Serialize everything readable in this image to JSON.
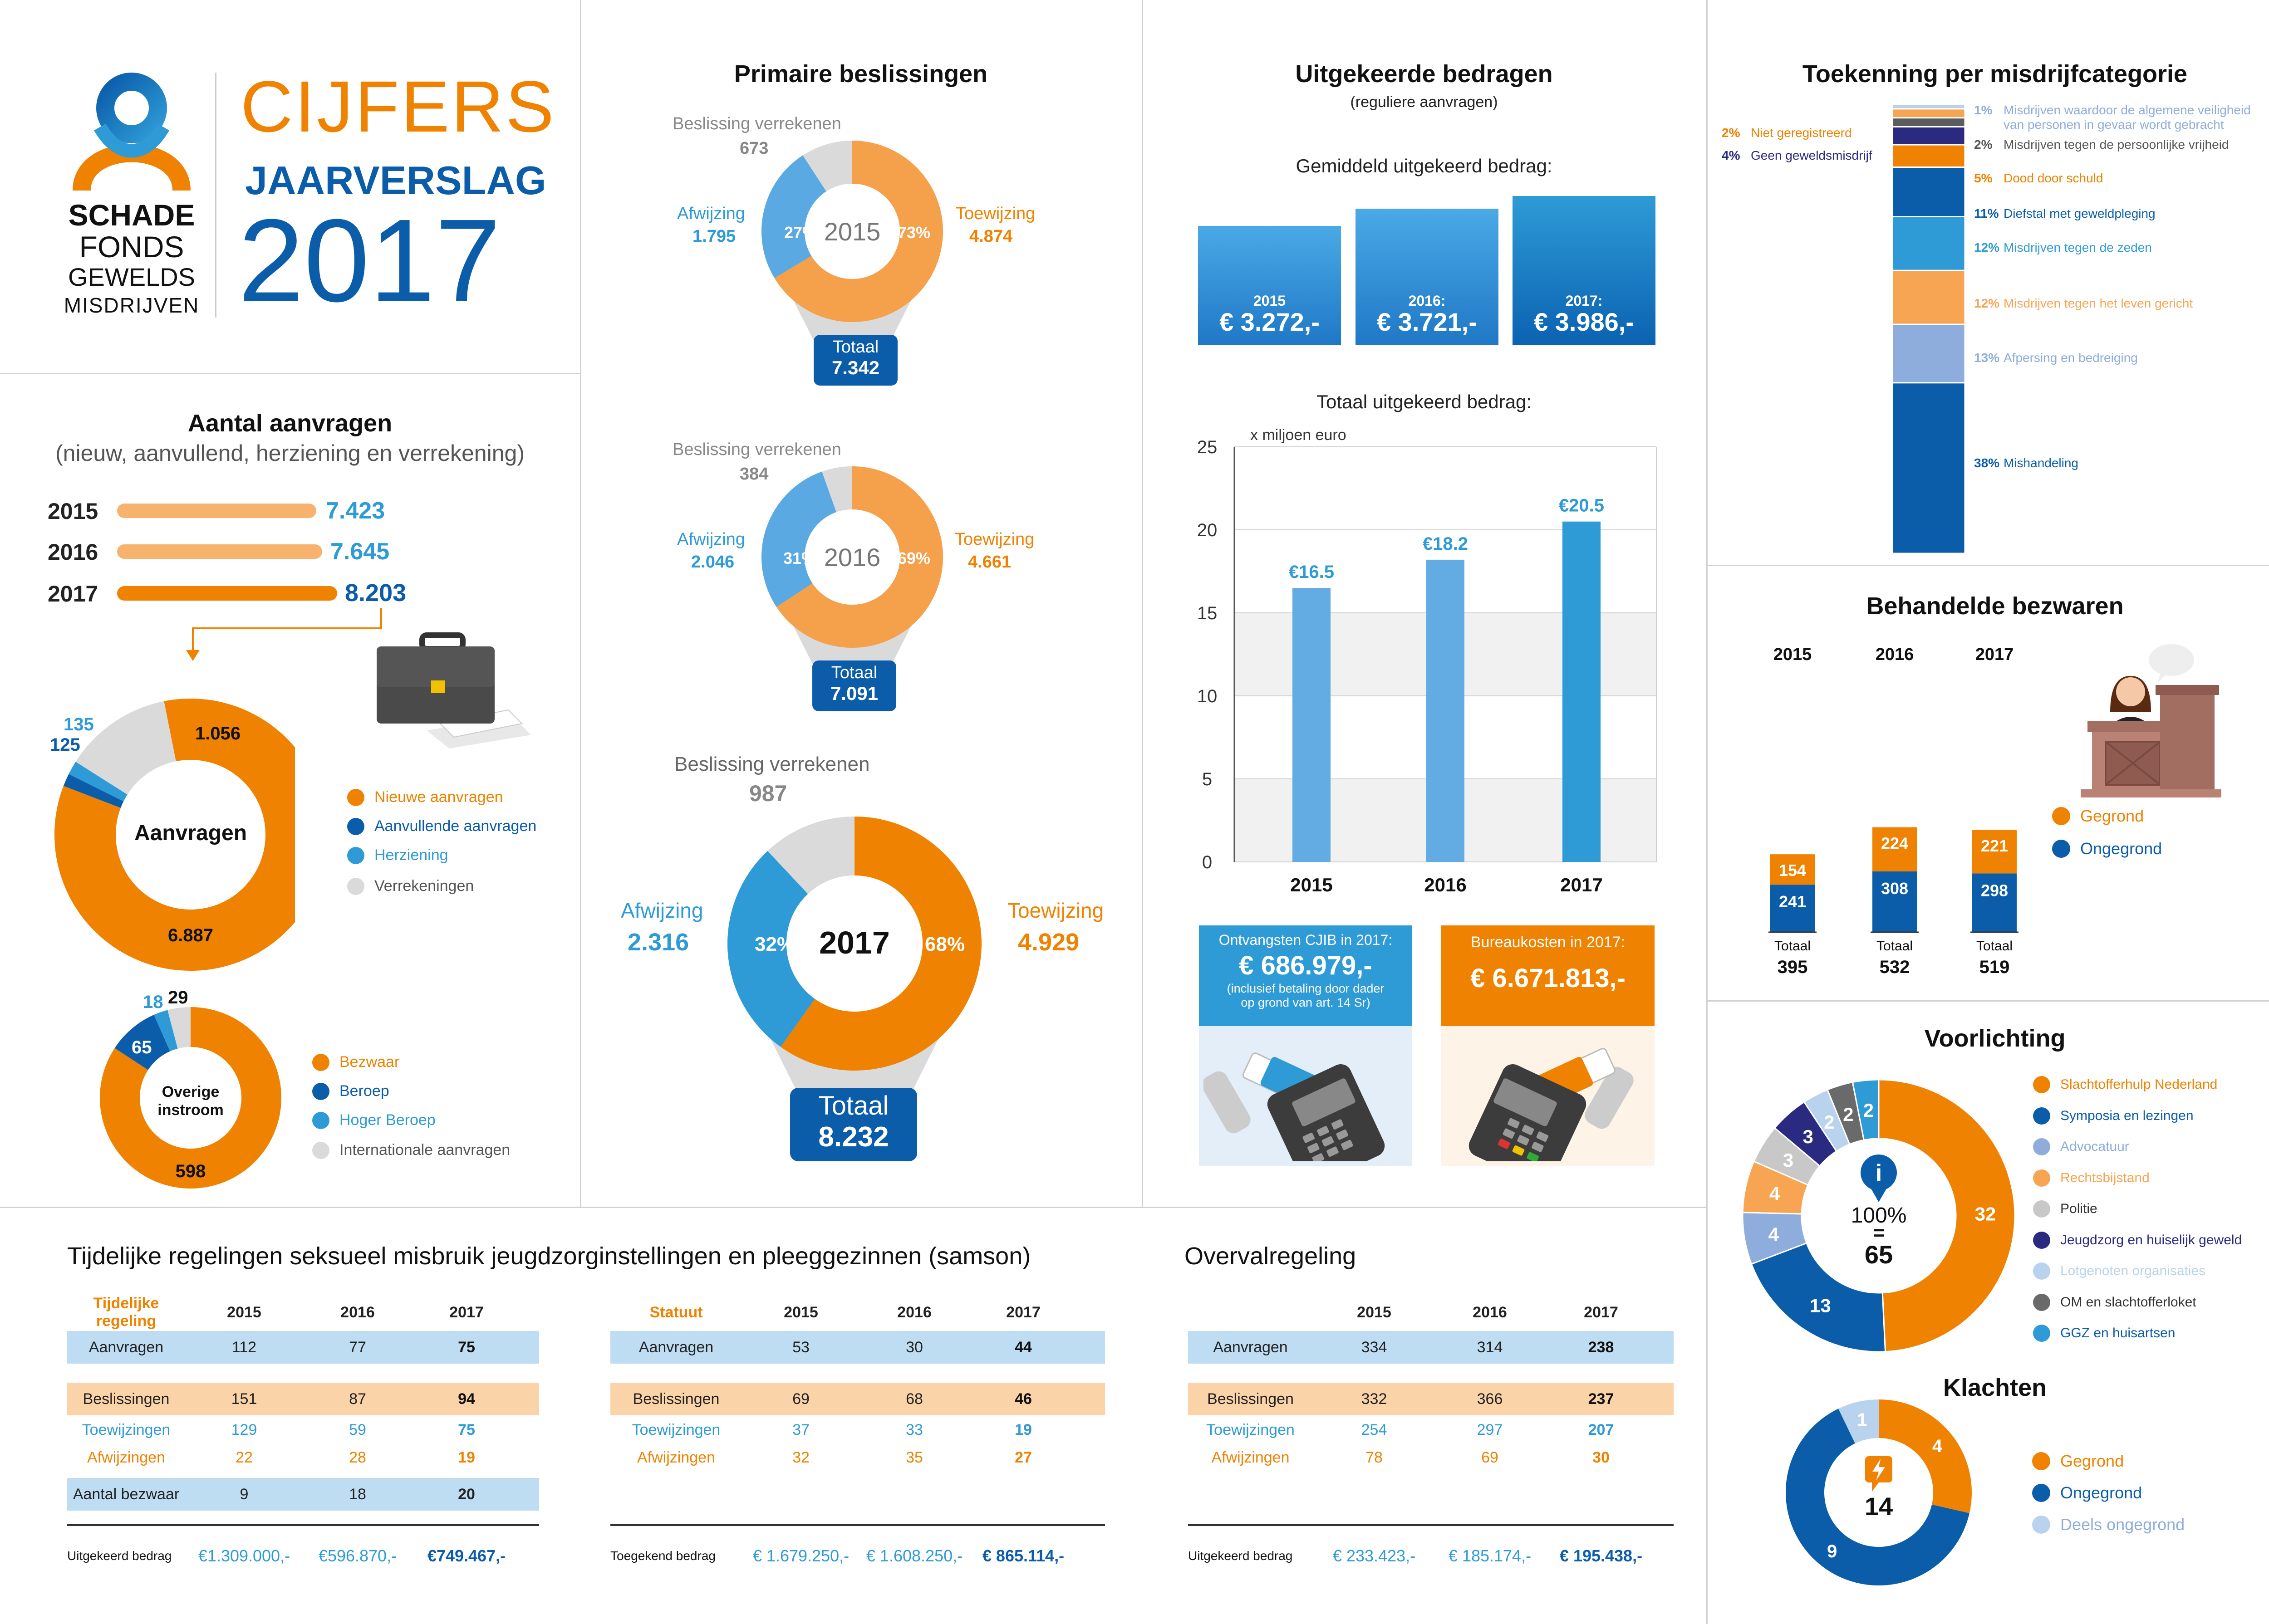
{
  "colors": {
    "orange": "#EF8200",
    "light_orange": "#F7A552",
    "blue": "#0B5DAA",
    "light_blue": "#2E9BD6",
    "gray": "#DADADA",
    "navy": "#2A2A80"
  },
  "logo": {
    "line1": "SCHADE",
    "line2": "FONDS",
    "line3": "GEWELDS",
    "line4": "MISDRIJVEN",
    "title1": "CIJFERS",
    "title2": "JAARVERSLAG",
    "year": "2017"
  },
  "aanvragen": {
    "title": "Aantal aanvragen",
    "subtitle": "(nieuw, aanvullend, herziening en verrekening)",
    "rows": [
      {
        "year": "2015",
        "value": "7.423",
        "bar": 7423
      },
      {
        "year": "2016",
        "value": "7.645",
        "bar": 7645
      },
      {
        "year": "2017",
        "value": "8.203",
        "bar": 8203
      }
    ],
    "donut_label": "Aanvragen",
    "legend": [
      "Nieuwe aanvragen",
      "Aanvullende aanvragen",
      "Herziening",
      "Verrekeningen"
    ],
    "other_label_line1": "Overige",
    "other_label_line2": "instroom",
    "other_legend": [
      "Bezwaar",
      "Beroep",
      "Hoger Beroep",
      "Internationale aanvragen"
    ]
  },
  "primaire": {
    "title": "Primaire beslissingen",
    "verrekenen_label": "Beslissing verrekenen",
    "afwijzing_label": "Afwijzing",
    "toewijzing_label": "Toewijzing",
    "totaal_label": "Totaal",
    "years": [
      {
        "year": "2015",
        "verrekenen": "673",
        "afwijzing": "1.795",
        "toewijzing": "4.874",
        "afw_pct": "27%",
        "toe_pct": "73%",
        "totaal": "7.342"
      },
      {
        "year": "2016",
        "verrekenen": "384",
        "afwijzing": "2.046",
        "toewijzing": "4.661",
        "afw_pct": "31%",
        "toe_pct": "69%",
        "totaal": "7.091"
      },
      {
        "year": "2017",
        "verrekenen": "987",
        "afwijzing": "2.316",
        "toewijzing": "4.929",
        "afw_pct": "32%",
        "toe_pct": "68%",
        "totaal": "8.232"
      }
    ]
  },
  "uitgekeerd": {
    "title": "Uitgekeerde bedragen",
    "subtitle": "(reguliere aanvragen)",
    "avg_title": "Gemiddeld uitgekeerd bedrag:",
    "avg": [
      {
        "year": "2015",
        "value": "€ 3.272,-"
      },
      {
        "year": "2016:",
        "value": "€ 3.721,-"
      },
      {
        "year": "2017:",
        "value": "€ 3.986,-"
      }
    ],
    "total_title": "Totaal uitgekeerd bedrag:",
    "cjib_title": "Ontvangsten CJIB in 2017:",
    "cjib_value": "€ 686.979,-",
    "cjib_note1": "(inclusief betaling door dader",
    "cjib_note2": "op grond van art. 14 Sr)",
    "bureau_title": "Bureaukosten in 2017:",
    "bureau_value": "€ 6.671.813,-"
  },
  "chart_data": [
    {
      "type": "bar",
      "title": "Totaal uitgekeerd bedrag:",
      "ylabel": "x miljoen euro",
      "categories": [
        "2015",
        "2016",
        "2017"
      ],
      "values": [
        16.5,
        18.2,
        20.5
      ],
      "data_labels": [
        "€16.5",
        "€18.2",
        "€20.5"
      ],
      "ylim": [
        0,
        25
      ],
      "yticks": [
        0,
        5,
        10,
        15,
        20,
        25
      ],
      "grid": true
    },
    {
      "type": "bar",
      "title": "Behandelde bezwaren",
      "categories": [
        "2015",
        "2016",
        "2017"
      ],
      "series": [
        {
          "name": "Gegrond",
          "values": [
            154,
            224,
            221
          ]
        },
        {
          "name": "Ongegrond",
          "values": [
            241,
            308,
            298
          ]
        }
      ],
      "totals": [
        395,
        532,
        519
      ],
      "total_label": "Totaal"
    },
    {
      "type": "pie",
      "title": "Aanvragen",
      "labels": [
        "Nieuwe aanvragen",
        "Aanvullende aanvragen",
        "Herziening",
        "Verrekeningen"
      ],
      "values": [
        6887,
        125,
        135,
        1056
      ]
    },
    {
      "type": "pie",
      "title": "Overige instroom",
      "labels": [
        "Bezwaar",
        "Beroep",
        "Hoger Beroep",
        "Internationale aanvragen"
      ],
      "values": [
        598,
        65,
        18,
        29
      ]
    },
    {
      "type": "pie",
      "title": "Voorlichting",
      "center": "100% = 65",
      "labels": [
        "Slachtofferhulp Nederland",
        "Symposia en lezingen",
        "Advocatuur",
        "Rechtsbijstand",
        "Politie",
        "Jeugdzorg en huiselijk geweld",
        "Lotgenoten organisaties",
        "OM en slachtofferloket",
        "GGZ en huisartsen"
      ],
      "values": [
        32,
        13,
        4,
        4,
        3,
        3,
        2,
        2,
        2
      ]
    },
    {
      "type": "pie",
      "title": "Klachten",
      "center": "14",
      "labels": [
        "Gegrond",
        "Ongegrond",
        "Deels ongegrond"
      ],
      "values": [
        4,
        9,
        1
      ]
    },
    {
      "type": "bar",
      "title": "Toekenning per misdrijfcategorie",
      "stacked": true,
      "unit": "%",
      "labels": [
        "Mishandeling",
        "Afpersing en bedreiging",
        "Misdrijven tegen het leven gericht",
        "Misdrijven tegen de zeden",
        "Diefstal met geweldpleging",
        "Dood door schuld",
        "Misdrijven tegen de persoonlijke vrijheid",
        "Misdrijven waardoor de algemene veiligheid van personen in gevaar wordt gebracht",
        "Geen geweldsmisdrijf",
        "Niet geregistreerd"
      ],
      "values": [
        38,
        13,
        12,
        12,
        11,
        5,
        2,
        1,
        4,
        2
      ]
    }
  ],
  "toekenning": {
    "title": "Toekenning per misdrijfcategorie",
    "right": [
      {
        "pct": "1%",
        "label": "Misdrijven waardoor de algemene veiligheid",
        "label2": "van personen in gevaar wordt gebracht"
      },
      {
        "pct": "2%",
        "label": "Misdrijven tegen de persoonlijke vrijheid"
      },
      {
        "pct": "5%",
        "label": "Dood door schuld"
      },
      {
        "pct": "11%",
        "label": "Diefstal met geweldpleging"
      },
      {
        "pct": "12%",
        "label": "Misdrijven tegen de zeden"
      },
      {
        "pct": "12%",
        "label": "Misdrijven tegen het leven gericht"
      },
      {
        "pct": "13%",
        "label": "Afpersing en bedreiging"
      },
      {
        "pct": "38%",
        "label": "Mishandeling"
      }
    ],
    "left": [
      {
        "pct": "2%",
        "label": "Niet geregistreerd"
      },
      {
        "pct": "4%",
        "label": "Geen geweldsmisdrijf"
      }
    ]
  },
  "bezwaren": {
    "title": "Behandelde bezwaren",
    "legend": [
      "Gegrond",
      "Ongegrond"
    ]
  },
  "voorlichting": {
    "title": "Voorlichting",
    "center1": "100%",
    "center2": "=",
    "center3": "65"
  },
  "klachten": {
    "title": "Klachten",
    "center": "14"
  },
  "samson": {
    "title": "Tijdelijke regelingen seksueel misbruik jeugdzorginstellingen en pleeggezinnen (samson)",
    "t1": {
      "head": [
        "Tijdelijke regeling",
        "2015",
        "2016",
        "2017"
      ],
      "rows": [
        [
          "Aanvragen",
          "112",
          "77",
          "75"
        ],
        [
          "Beslissingen",
          "151",
          "87",
          "94"
        ],
        [
          "Toewijzingen",
          "129",
          "59",
          "75"
        ],
        [
          "Afwijzingen",
          "22",
          "28",
          "19"
        ],
        [
          "Aantal bezwaar",
          "9",
          "18",
          "20"
        ]
      ],
      "foot": [
        "Uitgekeerd bedrag",
        "€1.309.000,-",
        "€596.870,-",
        "€749.467,-"
      ]
    },
    "t2": {
      "head": [
        "Statuut",
        "2015",
        "2016",
        "2017"
      ],
      "rows": [
        [
          "Aanvragen",
          "53",
          "30",
          "44"
        ],
        [
          "Beslissingen",
          "69",
          "68",
          "46"
        ],
        [
          "Toewijzingen",
          "37",
          "33",
          "19"
        ],
        [
          "Afwijzingen",
          "32",
          "35",
          "27"
        ]
      ],
      "foot": [
        "Toegekend bedrag",
        "€ 1.679.250,-",
        "€ 1.608.250,-",
        "€ 865.114,-"
      ]
    }
  },
  "overval": {
    "title": "Overvalregeling",
    "head": [
      "",
      "2015",
      "2016",
      "2017"
    ],
    "rows": [
      [
        "Aanvragen",
        "334",
        "314",
        "238"
      ],
      [
        "Beslissingen",
        "332",
        "366",
        "237"
      ],
      [
        "Toewijzingen",
        "254",
        "297",
        "207"
      ],
      [
        "Afwijzingen",
        "78",
        "69",
        "30"
      ]
    ],
    "foot": [
      "Uitgekeerd bedrag",
      "€ 233.423,-",
      "€ 185.174,-",
      "€ 195.438,-"
    ]
  }
}
